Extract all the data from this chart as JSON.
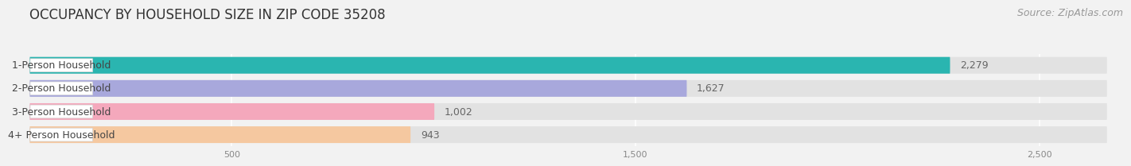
{
  "title": "OCCUPANCY BY HOUSEHOLD SIZE IN ZIP CODE 35208",
  "source": "Source: ZipAtlas.com",
  "categories": [
    "1-Person Household",
    "2-Person Household",
    "3-Person Household",
    "4+ Person Household"
  ],
  "values": [
    2279,
    1627,
    1002,
    943
  ],
  "bar_colors": [
    "#2ab5b0",
    "#a8a8dc",
    "#f4a8bc",
    "#f5c8a0"
  ],
  "xlim": [
    0,
    2700
  ],
  "xticks": [
    500,
    1500,
    2500
  ],
  "background_color": "#f2f2f2",
  "bar_bg_color": "#e2e2e2",
  "title_fontsize": 12,
  "source_fontsize": 9,
  "label_fontsize": 9,
  "value_fontsize": 9
}
